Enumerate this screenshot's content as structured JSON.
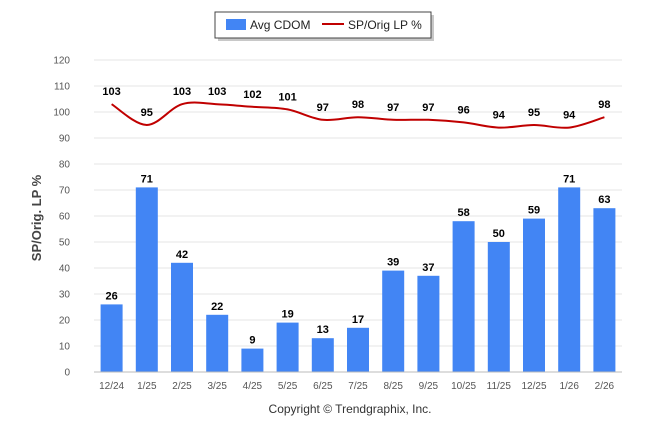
{
  "chart_data": {
    "type": "bar",
    "categories": [
      "12/24",
      "1/25",
      "2/25",
      "3/25",
      "4/25",
      "5/25",
      "6/25",
      "7/25",
      "8/25",
      "9/25",
      "10/25",
      "11/25",
      "12/25",
      "1/26",
      "2/26"
    ],
    "series": [
      {
        "name": "Avg CDOM",
        "type": "bar",
        "color": "#4285f4",
        "values": [
          26,
          71,
          42,
          22,
          9,
          19,
          13,
          17,
          39,
          37,
          58,
          50,
          59,
          71,
          63
        ]
      },
      {
        "name": "SP/Orig LP %",
        "type": "line",
        "color": "#c00000",
        "values": [
          103,
          95,
          103,
          103,
          102,
          101,
          97,
          98,
          97,
          97,
          96,
          94,
          95,
          94,
          98
        ]
      }
    ],
    "ylabel": "SP/Orig. LP %",
    "ylim": [
      0,
      120
    ],
    "yticks": [
      0,
      10,
      20,
      30,
      40,
      50,
      60,
      70,
      80,
      90,
      100,
      110,
      120
    ],
    "grid": true,
    "legend_position": "top-center"
  },
  "footer": {
    "copyright": "Copyright © Trendgraphix, Inc."
  }
}
